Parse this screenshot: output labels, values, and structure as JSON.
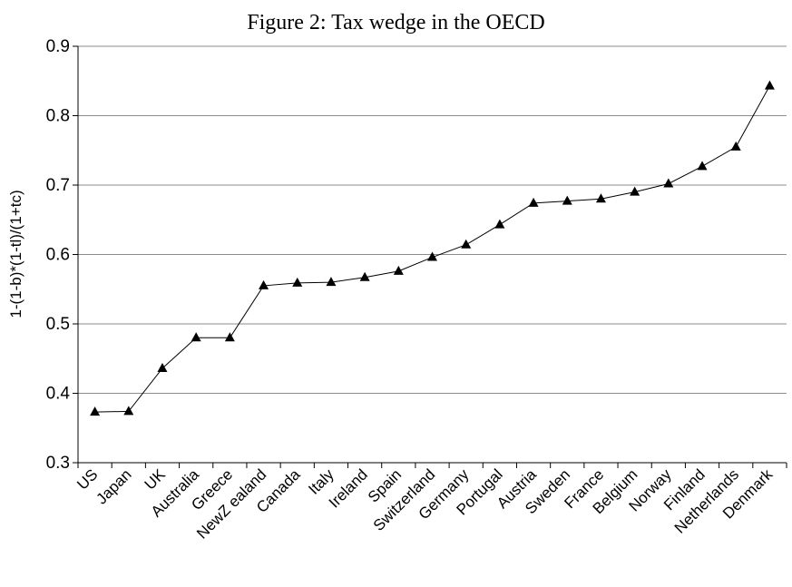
{
  "chart_data": {
    "type": "line",
    "title": "Figure 2: Tax wedge in the OECD",
    "xlabel": "",
    "ylabel": "1-(1-b)*(1-tl)/(1+tc)",
    "ylim": [
      0.3,
      0.9
    ],
    "yticks": [
      "0.3",
      "0.4",
      "0.5",
      "0.6",
      "0.7",
      "0.8",
      "0.9"
    ],
    "grid": true,
    "marker": "triangle",
    "categories": [
      "US",
      "Japan",
      "UK",
      "Australia",
      "Greece",
      "NewZ ealand",
      "Canada",
      "Italy",
      "Ireland",
      "Spain",
      "Switzerland",
      "Germany",
      "Portugal",
      "Austria",
      "Sweden",
      "France",
      "Belgium",
      "Norway",
      "Finland",
      "Netherlands",
      "Denmark"
    ],
    "series": [
      {
        "values": [
          0.373,
          0.374,
          0.436,
          0.48,
          0.48,
          0.555,
          0.559,
          0.56,
          0.567,
          0.576,
          0.596,
          0.614,
          0.643,
          0.674,
          0.677,
          0.68,
          0.69,
          0.702,
          0.727,
          0.755,
          0.843
        ]
      }
    ]
  }
}
